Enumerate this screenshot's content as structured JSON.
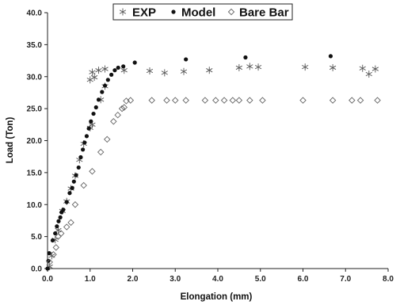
{
  "chart_data": {
    "type": "scatter",
    "xlabel": "Elongation (mm)",
    "ylabel": "Load (Ton)",
    "xlim": [
      0,
      8
    ],
    "ylim": [
      0,
      40
    ],
    "x_ticks": [
      "0.0",
      "1.0",
      "2.0",
      "3.0",
      "4.0",
      "5.0",
      "6.0",
      "7.0",
      "8.0"
    ],
    "y_ticks": [
      "0.0",
      "5.0",
      "10.0",
      "15.0",
      "20.0",
      "25.0",
      "30.0",
      "35.0",
      "40.0"
    ],
    "grid": false,
    "legend_position": "top",
    "series": [
      {
        "name": "EXP",
        "marker": "asterisk",
        "color": "#555555",
        "points": [
          [
            0.05,
            0.3
          ],
          [
            0.1,
            2.0
          ],
          [
            0.18,
            4.5
          ],
          [
            0.25,
            6.0
          ],
          [
            0.35,
            9.0
          ],
          [
            0.45,
            10.5
          ],
          [
            0.55,
            12.5
          ],
          [
            0.65,
            14.5
          ],
          [
            0.75,
            17.0
          ],
          [
            0.85,
            19.5
          ],
          [
            1.0,
            22.0
          ],
          [
            1.05,
            22.5
          ],
          [
            1.0,
            29.5
          ],
          [
            1.05,
            30.7
          ],
          [
            1.1,
            29.9
          ],
          [
            1.2,
            31.0
          ],
          [
            1.25,
            26.4
          ],
          [
            1.35,
            28.5
          ],
          [
            1.35,
            31.2
          ],
          [
            1.8,
            31.0
          ],
          [
            2.4,
            30.9
          ],
          [
            2.75,
            30.6
          ],
          [
            3.2,
            30.8
          ],
          [
            3.8,
            31.0
          ],
          [
            4.5,
            31.4
          ],
          [
            4.75,
            31.6
          ],
          [
            4.95,
            31.5
          ],
          [
            6.05,
            31.5
          ],
          [
            6.7,
            31.4
          ],
          [
            7.4,
            31.3
          ],
          [
            7.55,
            30.4
          ],
          [
            7.7,
            31.2
          ]
        ]
      },
      {
        "name": "Model",
        "marker": "filled-circle",
        "color": "#111111",
        "points": [
          [
            0.0,
            0.0
          ],
          [
            0.02,
            1.2
          ],
          [
            0.04,
            2.4
          ],
          [
            0.12,
            4.4
          ],
          [
            0.18,
            5.5
          ],
          [
            0.22,
            6.6
          ],
          [
            0.26,
            7.4
          ],
          [
            0.3,
            8.0
          ],
          [
            0.33,
            8.8
          ],
          [
            0.37,
            9.2
          ],
          [
            0.45,
            10.4
          ],
          [
            0.52,
            11.8
          ],
          [
            0.58,
            12.6
          ],
          [
            0.62,
            13.6
          ],
          [
            0.67,
            14.6
          ],
          [
            0.73,
            15.8
          ],
          [
            0.78,
            17.4
          ],
          [
            0.83,
            18.6
          ],
          [
            0.87,
            19.7
          ],
          [
            0.92,
            20.7
          ],
          [
            0.97,
            21.9
          ],
          [
            1.02,
            23.0
          ],
          [
            1.08,
            24.2
          ],
          [
            1.14,
            25.2
          ],
          [
            1.2,
            26.4
          ],
          [
            1.28,
            27.6
          ],
          [
            1.35,
            28.6
          ],
          [
            1.42,
            29.5
          ],
          [
            1.5,
            30.3
          ],
          [
            1.58,
            31.0
          ],
          [
            1.66,
            31.4
          ],
          [
            1.78,
            31.6
          ],
          [
            2.05,
            32.2
          ],
          [
            3.25,
            32.7
          ],
          [
            4.65,
            33.0
          ],
          [
            6.65,
            33.2
          ]
        ]
      },
      {
        "name": "Bare Bar",
        "marker": "open-diamond",
        "color": "#666666",
        "points": [
          [
            0.05,
            1.0
          ],
          [
            0.14,
            2.2
          ],
          [
            0.2,
            3.3
          ],
          [
            0.25,
            5.0
          ],
          [
            0.32,
            5.5
          ],
          [
            0.45,
            6.5
          ],
          [
            0.55,
            7.2
          ],
          [
            0.65,
            10.0
          ],
          [
            0.85,
            13.0
          ],
          [
            1.05,
            15.2
          ],
          [
            1.25,
            18.2
          ],
          [
            1.4,
            20.2
          ],
          [
            1.55,
            23.0
          ],
          [
            1.65,
            24.0
          ],
          [
            1.75,
            25.0
          ],
          [
            1.8,
            25.2
          ],
          [
            1.85,
            26.2
          ],
          [
            1.95,
            26.3
          ],
          [
            2.45,
            26.3
          ],
          [
            2.8,
            26.3
          ],
          [
            3.0,
            26.3
          ],
          [
            3.25,
            26.3
          ],
          [
            3.7,
            26.3
          ],
          [
            3.95,
            26.3
          ],
          [
            4.15,
            26.3
          ],
          [
            4.35,
            26.3
          ],
          [
            4.5,
            26.3
          ],
          [
            4.75,
            26.3
          ],
          [
            5.05,
            26.3
          ],
          [
            6.0,
            26.3
          ],
          [
            6.7,
            26.3
          ],
          [
            7.15,
            26.3
          ],
          [
            7.35,
            26.3
          ],
          [
            7.75,
            26.3
          ]
        ]
      }
    ]
  }
}
